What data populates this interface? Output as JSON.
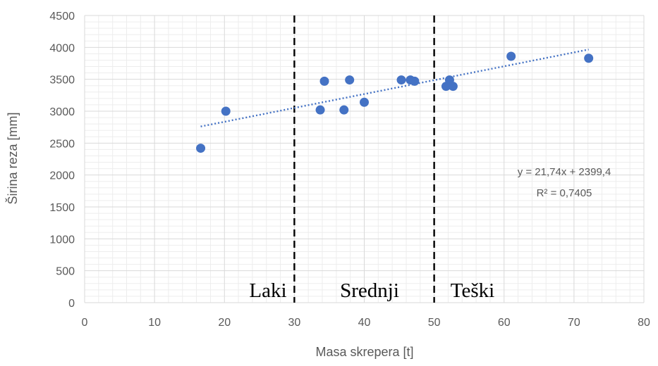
{
  "chart_data": {
    "type": "scatter",
    "xlabel": "Masa skrepera [t]",
    "ylabel": "Širina reza [mm]",
    "xlim": [
      0,
      80
    ],
    "ylim": [
      0,
      4500
    ],
    "x_ticks": [
      "0",
      "10",
      "20",
      "30",
      "40",
      "50",
      "60",
      "70",
      "80"
    ],
    "y_ticks": [
      "0",
      "500",
      "1000",
      "1500",
      "2000",
      "2500",
      "3000",
      "3500",
      "4000",
      "4500"
    ],
    "grid": true,
    "series": [
      {
        "points": [
          {
            "x": 16.6,
            "y": 2420
          },
          {
            "x": 20.2,
            "y": 3000
          },
          {
            "x": 33.7,
            "y": 3020
          },
          {
            "x": 34.3,
            "y": 3470
          },
          {
            "x": 37.1,
            "y": 3020
          },
          {
            "x": 37.9,
            "y": 3490
          },
          {
            "x": 40.0,
            "y": 3140
          },
          {
            "x": 45.3,
            "y": 3490
          },
          {
            "x": 46.6,
            "y": 3490
          },
          {
            "x": 47.2,
            "y": 3470
          },
          {
            "x": 51.7,
            "y": 3390
          },
          {
            "x": 52.2,
            "y": 3490
          },
          {
            "x": 52.7,
            "y": 3390
          },
          {
            "x": 61.0,
            "y": 3860
          },
          {
            "x": 72.1,
            "y": 3830
          }
        ],
        "color": "#4472c4"
      }
    ],
    "trendline": {
      "type": "linear",
      "slope": 21.74,
      "intercept": 2399.4,
      "x_range": [
        16.6,
        72.1
      ],
      "color": "#4472c4",
      "style": "dotted",
      "equation_label": "y = 21,74x + 2399,4",
      "r2_label": "R² = 0,7405"
    },
    "dividers": [
      {
        "x": 30
      },
      {
        "x": 50
      }
    ],
    "regions": [
      {
        "label": "Laki"
      },
      {
        "label": "Srednji"
      },
      {
        "label": "Teški"
      }
    ],
    "colors": {
      "grid": "#d9d9d9",
      "grid_minor": "#ededed",
      "text": "#595959",
      "divider": "#000000"
    }
  }
}
